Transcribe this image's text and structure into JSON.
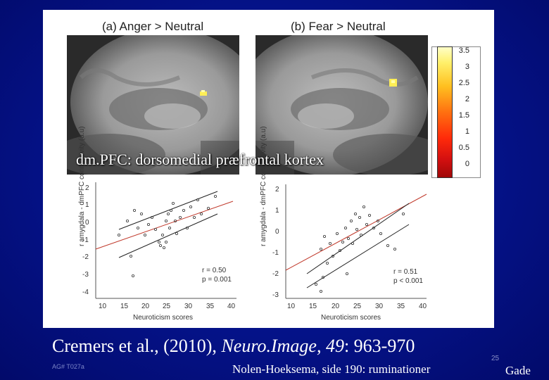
{
  "panel_a": {
    "title": "(a) Anger > Neutral"
  },
  "panel_b": {
    "title": "(b) Fear > Neutral"
  },
  "colorbar": {
    "ticks": [
      "3.5",
      "3",
      "2.5",
      "2",
      "1.5",
      "1",
      "0.5",
      "0"
    ]
  },
  "overlay_label": "dm.PFC: dorsomedial præfrontal kortex",
  "scatter_left": {
    "ylabel": "r amygdala - dmPFC connectivity (a.u)",
    "xlabel": "Neuroticism scores",
    "xticks": [
      "10",
      "15",
      "20",
      "25",
      "30",
      "35",
      "40"
    ],
    "yticks": [
      "2",
      "1",
      "0",
      "-1",
      "-2",
      "-3",
      "-4"
    ],
    "stat_r": "r = 0.50",
    "stat_p": "p = 0.001"
  },
  "scatter_right": {
    "ylabel": "r amygdala - dmPFC connectivity (a.u)",
    "xlabel": "Neuroticism scores",
    "xticks": [
      "10",
      "15",
      "20",
      "25",
      "30",
      "35",
      "40"
    ],
    "yticks": [
      "2",
      "1",
      "0",
      "-1",
      "-2",
      "-3"
    ],
    "stat_r": "r = 0.51",
    "stat_p": "p < 0.001"
  },
  "citation": {
    "prefix": "Cremers et al., (2010), ",
    "journal": "Neuro.Image, 49",
    "suffix": ": 963-970"
  },
  "slide_code": "AG# T027a",
  "footer_text": "Nolen-Hoeksema, side 190: ruminationer",
  "slide_number": "25",
  "author": "Gade"
}
